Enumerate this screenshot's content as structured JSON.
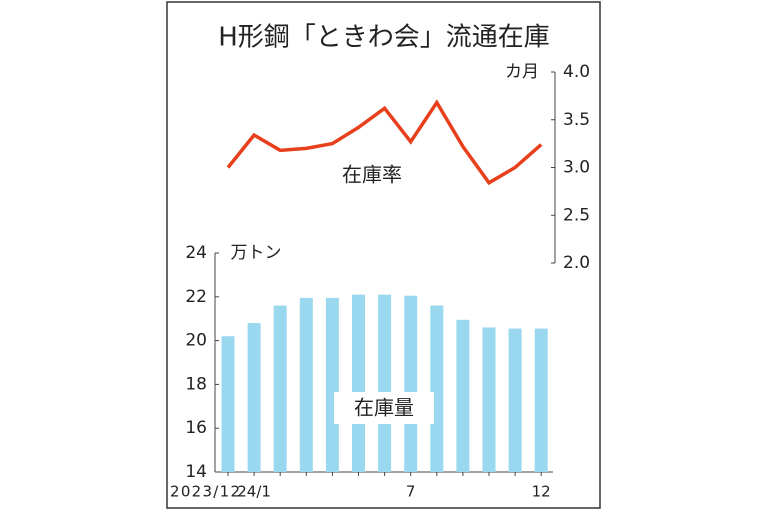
{
  "chart_data": {
    "type": "bar",
    "title": "H形鋼「ときわ会」流通在庫",
    "categories": [
      "2023/12",
      "24/1",
      null,
      null,
      null,
      null,
      null,
      "7",
      null,
      null,
      null,
      null,
      "12"
    ],
    "ylabel": "万トン",
    "y2label": "カ月",
    "ylim": [
      14,
      24
    ],
    "yticks": [
      14,
      16,
      18,
      20,
      22,
      24
    ],
    "y2lim": [
      2.0,
      4.0
    ],
    "y2ticks": [
      {
        "value": 2.0,
        "label": "2.0"
      },
      {
        "value": 2.5,
        "label": "2.5"
      },
      {
        "value": 3.0,
        "label": "3.0"
      },
      {
        "value": 3.5,
        "label": "3.5"
      },
      {
        "value": 4.0,
        "label": "4.0"
      }
    ],
    "series": [
      {
        "name": "在庫量",
        "type": "bar",
        "color": "#9ad8ef",
        "values": [
          20.2,
          20.8,
          21.6,
          21.95,
          21.95,
          22.1,
          22.1,
          22.05,
          21.6,
          20.95,
          20.6,
          20.55,
          20.55
        ]
      },
      {
        "name": "在庫率",
        "type": "line",
        "axis": "y2",
        "color": "#e8401c",
        "values": [
          3.0,
          3.34,
          3.18,
          3.2,
          3.25,
          3.42,
          3.62,
          3.27,
          3.68,
          3.22,
          2.84,
          3.0,
          3.24
        ]
      }
    ]
  }
}
